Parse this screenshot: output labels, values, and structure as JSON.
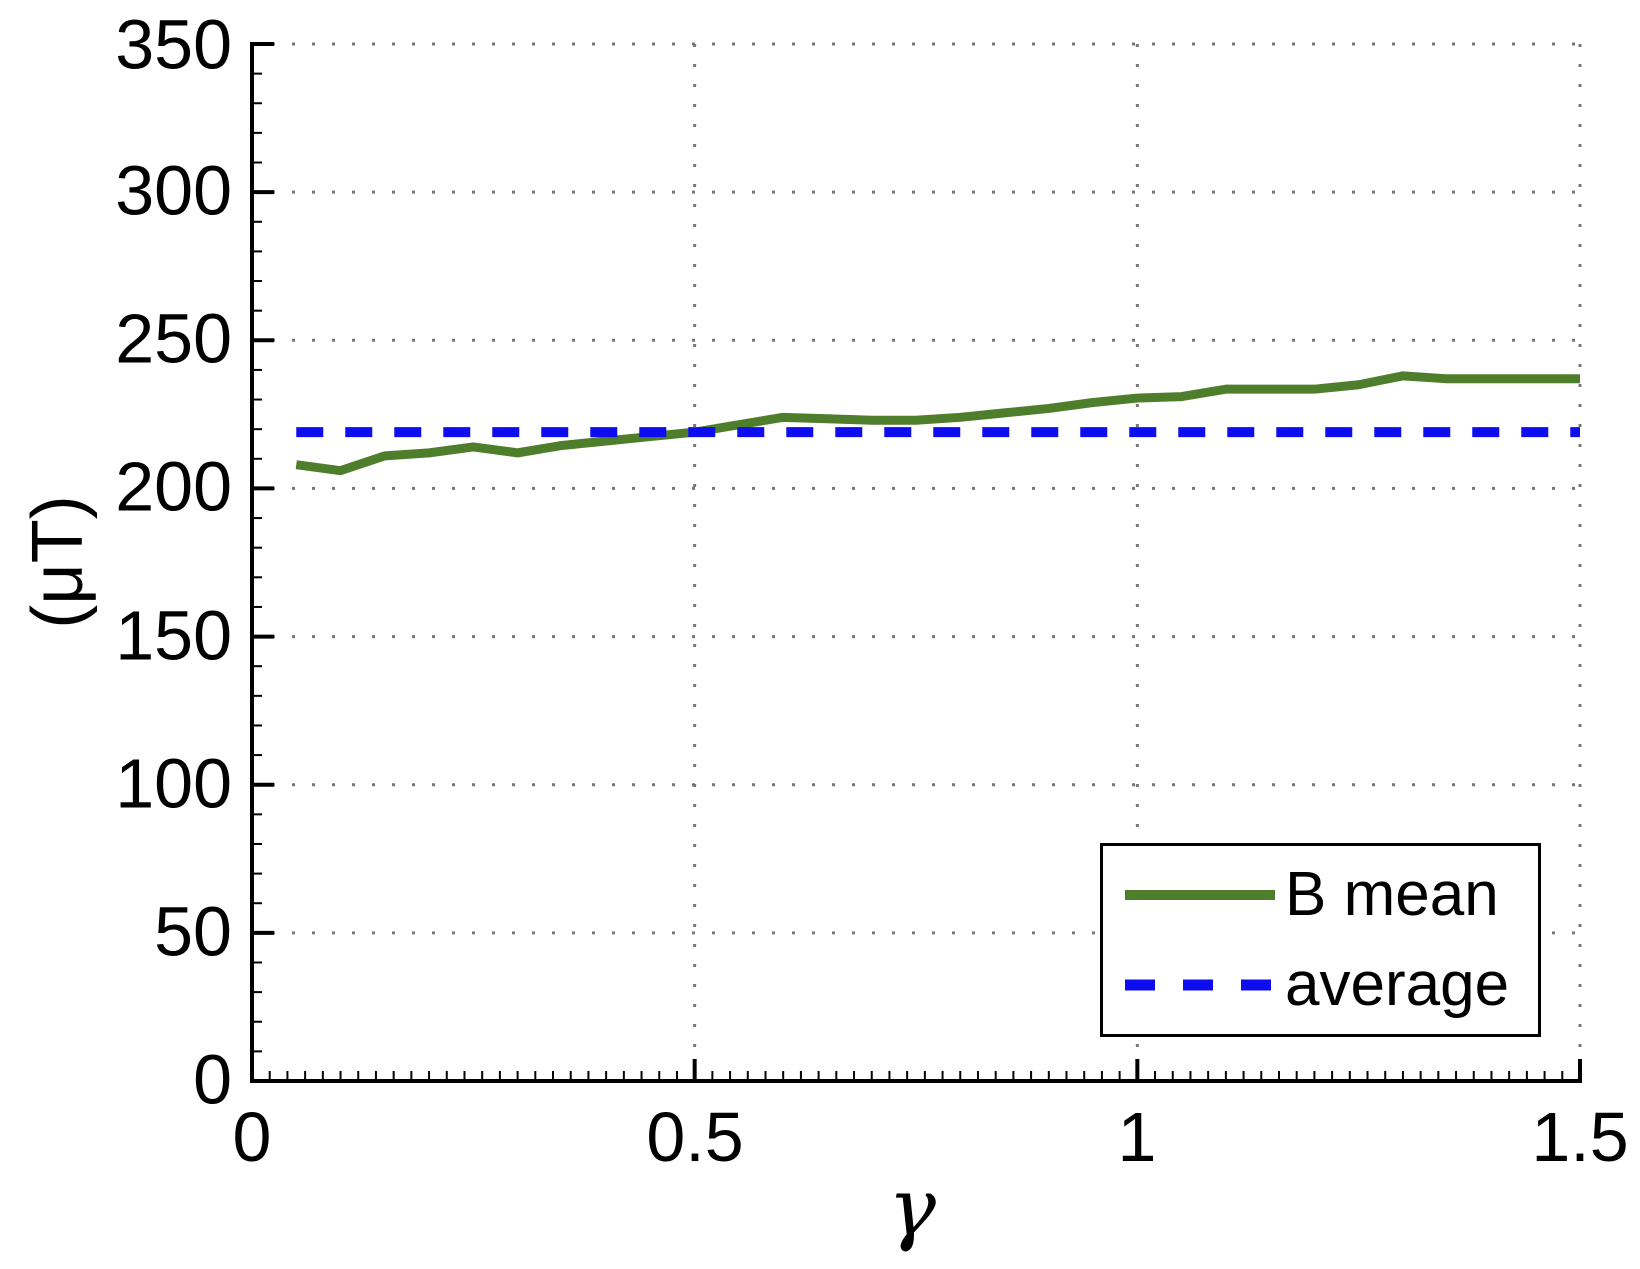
{
  "chart_data": {
    "type": "line",
    "title": "",
    "xlabel": "γ",
    "ylabel": "(μT)",
    "xlim": [
      0,
      1.5
    ],
    "ylim": [
      0,
      350
    ],
    "xticks": [
      0,
      0.5,
      1,
      1.5
    ],
    "xtick_labels": [
      "0",
      "0.5",
      "1",
      "1.5"
    ],
    "yticks": [
      0,
      50,
      100,
      150,
      200,
      250,
      300,
      350
    ],
    "ytick_labels": [
      "0",
      "50",
      "100",
      "150",
      "200",
      "250",
      "300",
      "350"
    ],
    "x_minor_step": 0.02,
    "y_minor_step": 10,
    "grid": "dotted",
    "grid_color": "#777777",
    "axis_color": "#000000",
    "legend_position": "lower right",
    "series": [
      {
        "name": "B mean",
        "color": "#4e7d2b",
        "style": "solid",
        "x": [
          0.05,
          0.1,
          0.15,
          0.2,
          0.25,
          0.3,
          0.35,
          0.4,
          0.45,
          0.5,
          0.55,
          0.6,
          0.65,
          0.7,
          0.75,
          0.8,
          0.85,
          0.9,
          0.95,
          1.0,
          1.05,
          1.1,
          1.15,
          1.2,
          1.25,
          1.3,
          1.35,
          1.4,
          1.45,
          1.5
        ],
        "y": [
          208,
          206,
          211,
          212,
          214,
          212,
          214.5,
          216,
          217.5,
          219,
          221.5,
          224,
          223.5,
          223,
          223,
          224,
          225.5,
          227,
          229,
          230.5,
          231,
          233.5,
          233.5,
          233.5,
          235,
          238,
          237,
          237,
          237,
          237
        ]
      },
      {
        "name": "average",
        "color": "#0d0def",
        "style": "dashed",
        "value": 219,
        "x": [
          0.05,
          1.5
        ],
        "y": [
          219,
          219
        ]
      }
    ]
  }
}
